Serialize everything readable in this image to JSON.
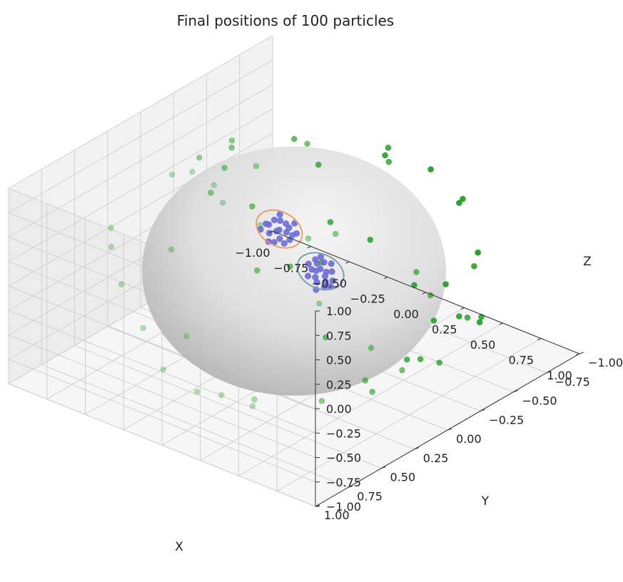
{
  "chart_data": {
    "type": "scatter",
    "projection": "3d",
    "title": "Final positions of 100 particles",
    "xlabel": "X",
    "ylabel": "Y",
    "zlabel": "Z",
    "xlim": [
      -1.0,
      1.0
    ],
    "ylim": [
      -1.0,
      1.0
    ],
    "zlim": [
      -1.0,
      1.0
    ],
    "x_ticks": [
      "−1.00",
      "−0.75",
      "−0.50",
      "−0.25",
      "0.00",
      "0.25",
      "0.50",
      "0.75",
      "1.00"
    ],
    "y_ticks": [
      "−1.00",
      "−0.75",
      "−0.50",
      "−0.25",
      "0.00",
      "0.25",
      "0.50",
      "0.75",
      "1.00"
    ],
    "z_ticks": [
      "−1.00",
      "−0.75",
      "−0.50",
      "−0.25",
      "0.00",
      "0.25",
      "0.50",
      "0.75",
      "1.00"
    ],
    "grid": true,
    "surface": {
      "shape": "unit sphere",
      "color": "#9a9a9a"
    },
    "colors": {
      "free_particles": "#2ca02c",
      "cluster_particles": "#6b6bd6",
      "cluster_1_ring": "#7a9fb0",
      "cluster_2_ring": "#e8a070",
      "pane": "#f2f2f2",
      "grid": "#d0d0d0"
    },
    "series": [
      {
        "kind": "free",
        "points": [
          [
            0.22,
            -0.78,
            0.57
          ],
          [
            -0.6,
            0.02,
            0.8
          ],
          [
            0.53,
            0.41,
            0.74
          ],
          [
            -0.95,
            -0.18,
            0.25
          ],
          [
            -0.9,
            -0.44,
            -0.03
          ],
          [
            -0.86,
            -0.46,
            -0.2
          ],
          [
            -0.71,
            -0.57,
            -0.42
          ],
          [
            -0.5,
            -0.69,
            -0.52
          ],
          [
            0.1,
            -0.81,
            -0.58
          ],
          [
            0.46,
            -0.83,
            -0.31
          ],
          [
            0.8,
            -0.49,
            -0.35
          ],
          [
            0.82,
            -0.44,
            0.36
          ],
          [
            0.92,
            -0.08,
            0.38
          ],
          [
            0.4,
            0.19,
            0.9
          ],
          [
            0.31,
            0.64,
            0.7
          ],
          [
            -0.25,
            0.34,
            0.91
          ],
          [
            -0.51,
            -0.12,
            0.85
          ],
          [
            -0.3,
            -0.35,
            0.89
          ],
          [
            0.03,
            -0.15,
            0.99
          ],
          [
            0.56,
            -0.6,
            0.58
          ],
          [
            0.87,
            0.1,
            0.48
          ],
          [
            0.97,
            0.17,
            -0.16
          ],
          [
            0.86,
            0.46,
            -0.22
          ],
          [
            0.43,
            0.8,
            -0.42
          ],
          [
            0.1,
            0.85,
            -0.51
          ],
          [
            -0.31,
            0.63,
            -0.71
          ],
          [
            -0.63,
            0.41,
            -0.66
          ],
          [
            -0.85,
            0.32,
            -0.42
          ],
          [
            -0.95,
            0.28,
            -0.13
          ],
          [
            -0.78,
            -0.62,
            0.1
          ],
          [
            -0.55,
            -0.74,
            0.38
          ],
          [
            -0.1,
            -0.83,
            0.55
          ],
          [
            0.27,
            -0.72,
            -0.64
          ],
          [
            0.64,
            -0.57,
            -0.52
          ],
          [
            0.9,
            -0.36,
            -0.24
          ],
          [
            0.98,
            0.08,
            0.17
          ],
          [
            0.74,
            0.62,
            0.27
          ],
          [
            0.43,
            0.53,
            0.73
          ],
          [
            0.02,
            0.34,
            0.94
          ],
          [
            -0.35,
            0.12,
            0.93
          ],
          [
            -0.68,
            -0.32,
            0.66
          ],
          [
            -0.24,
            -0.47,
            -0.85
          ],
          [
            0.21,
            -0.34,
            -0.92
          ],
          [
            0.55,
            -0.18,
            -0.81
          ],
          [
            -0.52,
            0.21,
            -0.83
          ],
          [
            0.0,
            0.55,
            -0.84
          ],
          [
            0.35,
            0.72,
            -0.6
          ],
          [
            0.68,
            0.58,
            -0.45
          ],
          [
            0.82,
            0.36,
            -0.44
          ],
          [
            0.93,
            -0.02,
            -0.37
          ],
          [
            -0.93,
            -0.31,
            0.19
          ],
          [
            -0.4,
            -0.78,
            -0.48
          ],
          [
            0.12,
            -0.55,
            0.83
          ],
          [
            -0.18,
            0.72,
            0.67
          ],
          [
            0.6,
            0.12,
            0.79
          ],
          [
            0.96,
            0.26,
            -0.1
          ],
          [
            0.99,
            -0.1,
            0.08
          ],
          [
            -0.2,
            -0.95,
            0.25
          ],
          [
            0.3,
            -0.93,
            0.2
          ],
          [
            -0.72,
            0.55,
            0.42
          ]
        ]
      },
      {
        "kind": "cluster",
        "center": [
          0.56,
          0.45,
          0.7
        ],
        "points": [
          [
            0.5,
            0.42,
            0.76
          ],
          [
            0.54,
            0.4,
            0.74
          ],
          [
            0.58,
            0.43,
            0.69
          ],
          [
            0.61,
            0.47,
            0.64
          ],
          [
            0.56,
            0.49,
            0.67
          ],
          [
            0.52,
            0.47,
            0.71
          ],
          [
            0.6,
            0.41,
            0.69
          ],
          [
            0.63,
            0.44,
            0.64
          ],
          [
            0.55,
            0.44,
            0.71
          ],
          [
            0.49,
            0.46,
            0.74
          ],
          [
            0.58,
            0.5,
            0.64
          ],
          [
            0.53,
            0.51,
            0.68
          ],
          [
            0.62,
            0.49,
            0.61
          ],
          [
            0.57,
            0.38,
            0.73
          ],
          [
            0.51,
            0.39,
            0.77
          ],
          [
            0.6,
            0.53,
            0.6
          ],
          [
            0.54,
            0.46,
            0.7
          ],
          [
            0.59,
            0.45,
            0.67
          ],
          [
            0.52,
            0.43,
            0.74
          ],
          [
            0.64,
            0.47,
            0.61
          ]
        ]
      },
      {
        "kind": "cluster",
        "center": [
          -0.63,
          -0.62,
          -0.45
        ],
        "points": [
          [
            -0.6,
            -0.64,
            -0.48
          ],
          [
            -0.66,
            -0.58,
            -0.48
          ],
          [
            -0.62,
            -0.66,
            -0.42
          ],
          [
            -0.57,
            -0.63,
            -0.53
          ],
          [
            -0.68,
            -0.6,
            -0.42
          ],
          [
            -0.64,
            -0.55,
            -0.53
          ],
          [
            -0.59,
            -0.69,
            -0.42
          ],
          [
            -0.65,
            -0.65,
            -0.4
          ],
          [
            -0.61,
            -0.6,
            -0.52
          ],
          [
            -0.7,
            -0.56,
            -0.45
          ],
          [
            -0.56,
            -0.67,
            -0.49
          ],
          [
            -0.63,
            -0.62,
            -0.46
          ],
          [
            -0.67,
            -0.63,
            -0.39
          ],
          [
            -0.58,
            -0.6,
            -0.55
          ],
          [
            -0.62,
            -0.57,
            -0.54
          ],
          [
            -0.66,
            -0.66,
            -0.35
          ],
          [
            -0.6,
            -0.66,
            -0.45
          ],
          [
            -0.64,
            -0.61,
            -0.47
          ],
          [
            -0.69,
            -0.59,
            -0.41
          ],
          [
            -0.57,
            -0.65,
            -0.5
          ]
        ]
      }
    ]
  }
}
